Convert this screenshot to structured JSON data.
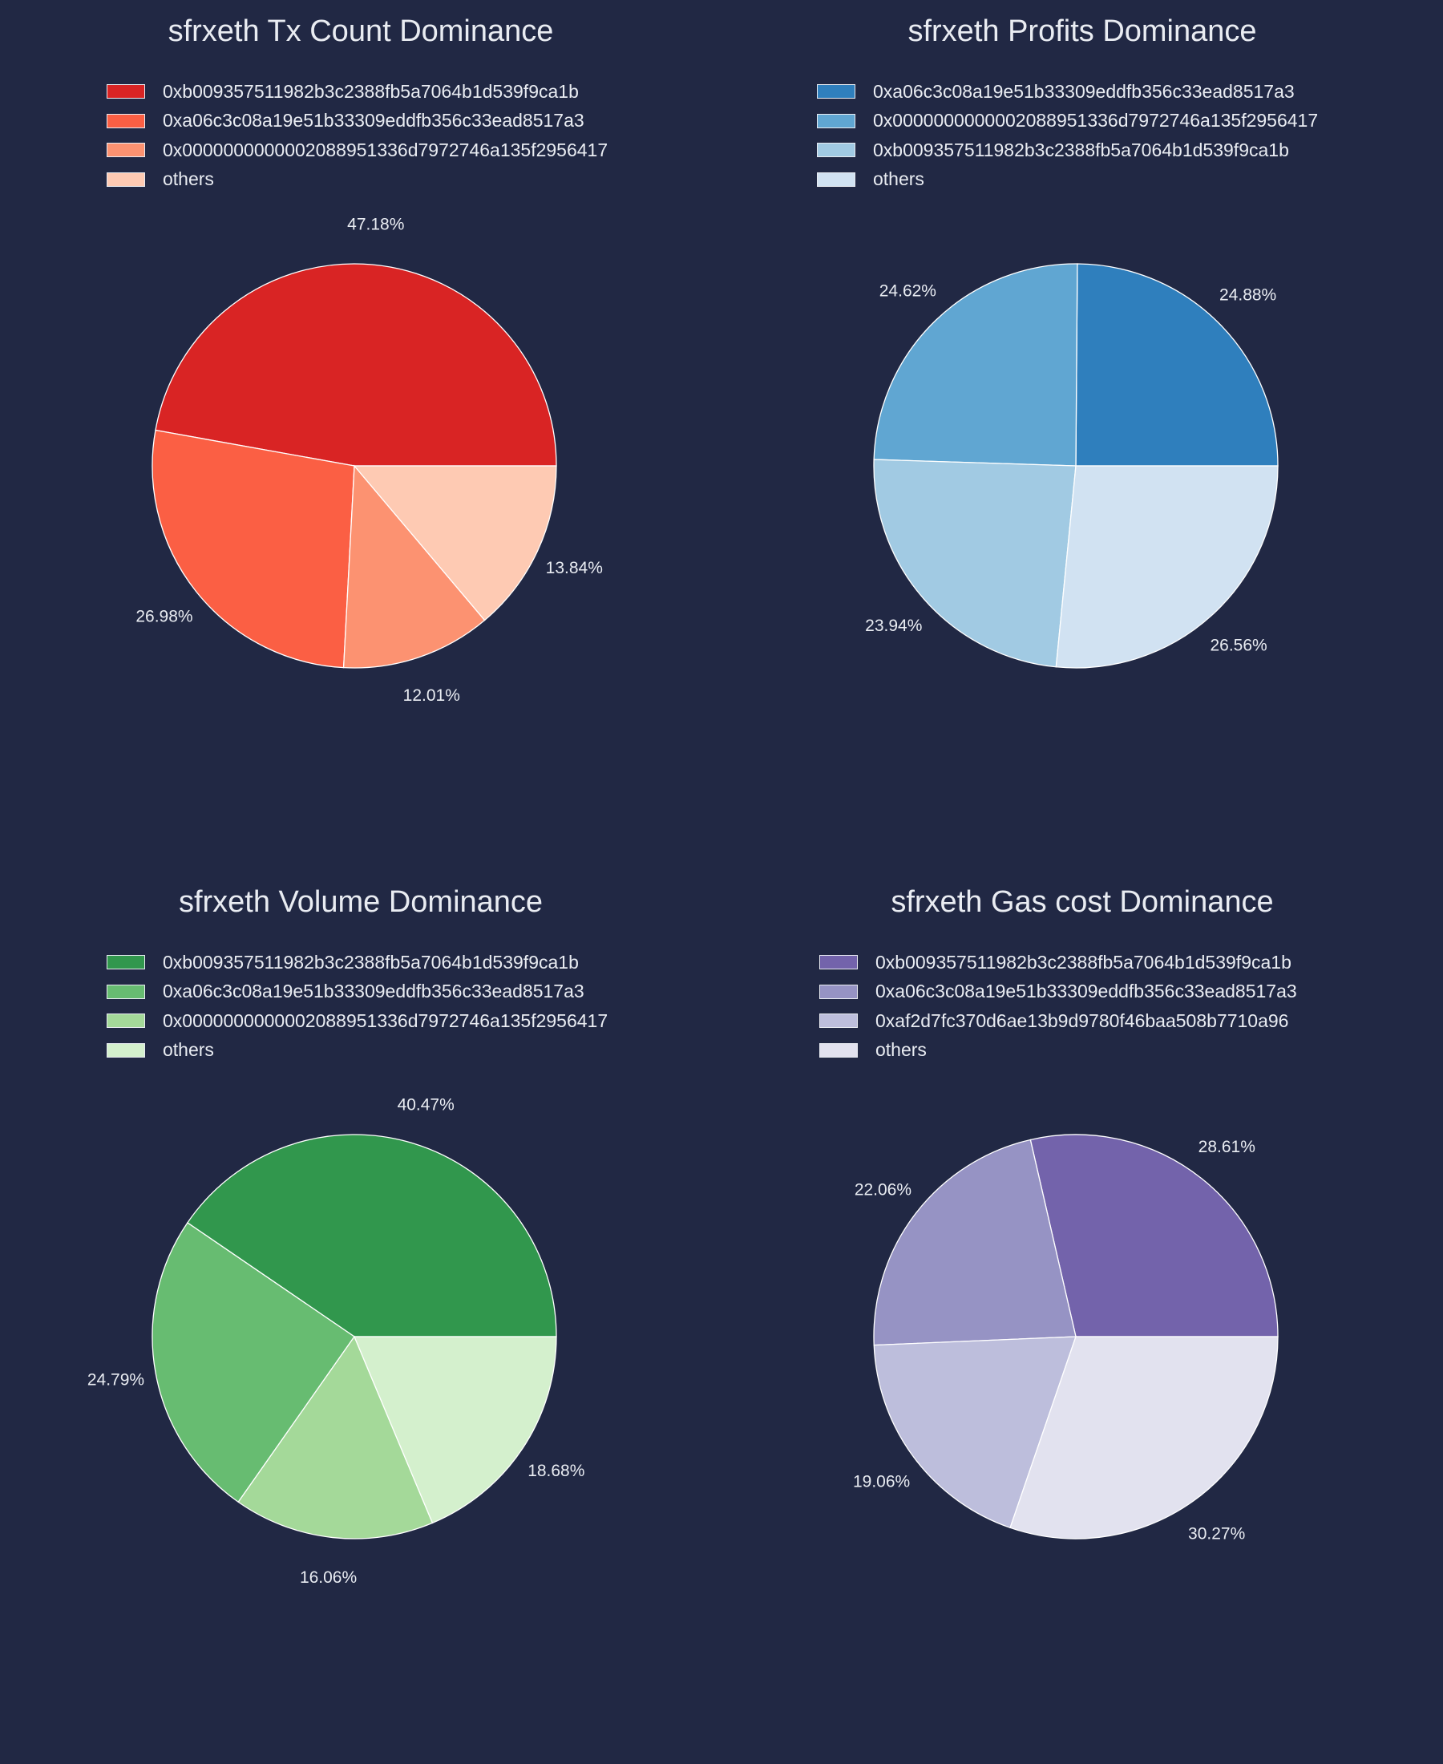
{
  "chart_data": [
    {
      "type": "pie",
      "title": "sfrxeth Tx Count Dominance",
      "categories": [
        "0xb009357511982b3c2388fb5a7064b1d539f9ca1b",
        "0xa06c3c08a19e51b33309eddfb356c33ead8517a3",
        "0x0000000000002088951336d7972746a135f2956417",
        "others"
      ],
      "values": [
        47.18,
        26.98,
        12.01,
        13.84
      ],
      "labels": [
        "47.18%",
        "26.98%",
        "12.01%",
        "13.84%"
      ],
      "colors": [
        "#d92424",
        "#fb5f44",
        "#fc9271",
        "#fecab3"
      ],
      "legend_position": "top-left"
    },
    {
      "type": "pie",
      "title": "sfrxeth Profits Dominance",
      "categories": [
        "0xa06c3c08a19e51b33309eddfb356c33ead8517a3",
        "0x0000000000002088951336d7972746a135f2956417",
        "0xb009357511982b3c2388fb5a7064b1d539f9ca1b",
        "others"
      ],
      "values": [
        24.88,
        24.62,
        23.94,
        26.56
      ],
      "labels": [
        "24.88%",
        "24.62%",
        "23.94%",
        "26.56%"
      ],
      "colors": [
        "#2f7fbd",
        "#60a6d2",
        "#a1cae3",
        "#d1e2f2"
      ],
      "legend_position": "top-left"
    },
    {
      "type": "pie",
      "title": "sfrxeth Volume Dominance",
      "categories": [
        "0xb009357511982b3c2388fb5a7064b1d539f9ca1b",
        "0xa06c3c08a19e51b33309eddfb356c33ead8517a3",
        "0x0000000000002088951336d7972746a135f2956417",
        "others"
      ],
      "values": [
        40.47,
        24.79,
        16.06,
        18.68
      ],
      "labels": [
        "40.47%",
        "24.79%",
        "16.06%",
        "18.68%"
      ],
      "colors": [
        "#31974d",
        "#67bc71",
        "#a4d999",
        "#d4f0cd"
      ],
      "legend_position": "top-left"
    },
    {
      "type": "pie",
      "title": "sfrxeth Gas cost Dominance",
      "categories": [
        "0xb009357511982b3c2388fb5a7064b1d539f9ca1b",
        "0xa06c3c08a19e51b33309eddfb356c33ead8517a3",
        "0xaf2d7fc370d6ae13b9d9780f46baa508b7710a96",
        "others"
      ],
      "values": [
        28.61,
        22.06,
        19.06,
        30.27
      ],
      "labels": [
        "28.61%",
        "22.06%",
        "19.06%",
        "30.27%"
      ],
      "colors": [
        "#7363ab",
        "#9693c4",
        "#bdbedc",
        "#e2e2ef"
      ],
      "legend_position": "top-left"
    }
  ]
}
